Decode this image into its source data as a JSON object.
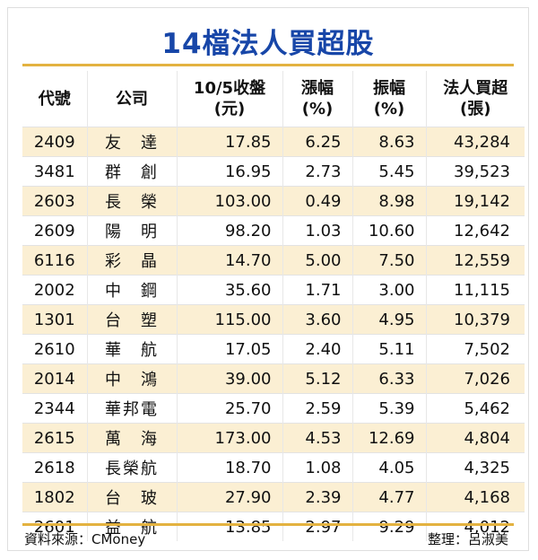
{
  "title": "14檔法人買超股",
  "columns": [
    "代號",
    "公司",
    "10/5收盤\n(元)",
    "漲幅\n(%)",
    "振幅\n(%)",
    "法人買超\n(張)"
  ],
  "rows": [
    [
      "2409",
      "友　達",
      "17.85",
      "6.25",
      "8.63",
      "43,284"
    ],
    [
      "3481",
      "群　創",
      "16.95",
      "2.73",
      "5.45",
      "39,523"
    ],
    [
      "2603",
      "長　榮",
      "103.00",
      "0.49",
      "8.98",
      "19,142"
    ],
    [
      "2609",
      "陽　明",
      "98.20",
      "1.03",
      "10.60",
      "12,642"
    ],
    [
      "6116",
      "彩　晶",
      "14.70",
      "5.00",
      "7.50",
      "12,559"
    ],
    [
      "2002",
      "中　鋼",
      "35.60",
      "1.71",
      "3.00",
      "11,115"
    ],
    [
      "1301",
      "台　塑",
      "115.00",
      "3.60",
      "4.95",
      "10,379"
    ],
    [
      "2610",
      "華　航",
      "17.05",
      "2.40",
      "5.11",
      "7,502"
    ],
    [
      "2014",
      "中　鴻",
      "39.00",
      "5.12",
      "6.33",
      "7,026"
    ],
    [
      "2344",
      "華邦電",
      "25.70",
      "2.59",
      "5.39",
      "5,462"
    ],
    [
      "2615",
      "萬　海",
      "173.00",
      "4.53",
      "12.69",
      "4,804"
    ],
    [
      "2618",
      "長榮航",
      "18.70",
      "1.08",
      "4.05",
      "4,325"
    ],
    [
      "1802",
      "台　玻",
      "27.90",
      "2.39",
      "4.77",
      "4,168"
    ],
    [
      "2601",
      "益　航",
      "13.85",
      "2.97",
      "9.29",
      "4,012"
    ]
  ],
  "footer": {
    "source": "資料來源：CMoney",
    "editor": "整理：呂淑美"
  },
  "colors": {
    "title": "#1746a8",
    "stripe": "#fbefd3",
    "rule": "#e3b240"
  }
}
